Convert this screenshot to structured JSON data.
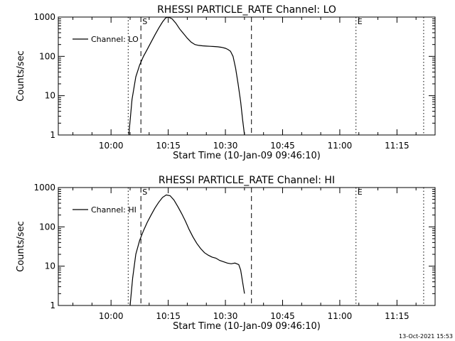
{
  "footer": {
    "timestamp": "13-Oct-2021 15:53"
  },
  "chart_data": [
    {
      "type": "line",
      "title": "RHESSI PARTICLE_RATE Channel: LO",
      "xlabel": "Start Time (10-Jan-09 09:46:10)",
      "ylabel": "Counts/sec",
      "y_scale": "log",
      "ylim": [
        1,
        1000
      ],
      "xlim": [
        "09:46:10",
        "11:25:00"
      ],
      "x_ticks": [
        "10:00",
        "10:15",
        "10:30",
        "10:45",
        "11:00",
        "11:15"
      ],
      "y_ticks": [
        "1",
        "10",
        "100",
        "1000"
      ],
      "legend": {
        "placement": "top-left",
        "entries": [
          "Channel: LO"
        ]
      },
      "markers": [
        {
          "label": "",
          "time": "10:04:30",
          "style": "dotted"
        },
        {
          "label": "S",
          "time": "10:07:50",
          "style": "dashed"
        },
        {
          "label": "",
          "time": "10:36:50",
          "style": "dashed"
        },
        {
          "label": "E",
          "time": "11:04:15",
          "style": "dotted"
        },
        {
          "label": "",
          "time": "11:22:00",
          "style": "dotted"
        }
      ],
      "series": [
        {
          "name": "Channel: LO",
          "x": [
            "10:04:40",
            "10:05:30",
            "10:06:30",
            "10:07:30",
            "10:08:30",
            "10:09:30",
            "10:10:30",
            "10:11:30",
            "10:12:30",
            "10:13:30",
            "10:14:20",
            "10:15:00",
            "10:16:00",
            "10:17:00",
            "10:18:00",
            "10:19:00",
            "10:20:00",
            "10:21:00",
            "10:22:00",
            "10:23:00",
            "10:24:00",
            "10:25:00",
            "10:26:00",
            "10:27:00",
            "10:28:00",
            "10:29:00",
            "10:30:00",
            "10:30:40",
            "10:31:20",
            "10:32:00",
            "10:32:40",
            "10:33:20",
            "10:34:00",
            "10:34:30",
            "10:35:00"
          ],
          "y": [
            1.0,
            8,
            30,
            60,
            100,
            150,
            230,
            350,
            520,
            750,
            950,
            1000,
            900,
            700,
            500,
            380,
            290,
            230,
            200,
            190,
            185,
            182,
            180,
            178,
            175,
            170,
            160,
            150,
            135,
            100,
            50,
            20,
            7,
            2.5,
            1.0
          ]
        }
      ]
    },
    {
      "type": "line",
      "title": "RHESSI PARTICLE_RATE Channel: HI",
      "xlabel": "Start Time (10-Jan-09 09:46:10)",
      "ylabel": "Counts/sec",
      "y_scale": "log",
      "ylim": [
        1,
        1000
      ],
      "xlim": [
        "09:46:10",
        "11:25:00"
      ],
      "x_ticks": [
        "10:00",
        "10:15",
        "10:30",
        "10:45",
        "11:00",
        "11:15"
      ],
      "y_ticks": [
        "1",
        "10",
        "100",
        "1000"
      ],
      "legend": {
        "placement": "top-left",
        "entries": [
          "Channel: HI"
        ]
      },
      "markers": [
        {
          "label": "",
          "time": "10:04:30",
          "style": "dotted"
        },
        {
          "label": "S",
          "time": "10:07:50",
          "style": "dashed"
        },
        {
          "label": "",
          "time": "10:36:50",
          "style": "dashed"
        },
        {
          "label": "E",
          "time": "11:04:15",
          "style": "dotted"
        },
        {
          "label": "",
          "time": "11:22:00",
          "style": "dotted"
        }
      ],
      "series": [
        {
          "name": "Channel: HI",
          "x": [
            "10:05:00",
            "10:05:40",
            "10:06:30",
            "10:07:30",
            "10:08:30",
            "10:09:30",
            "10:10:30",
            "10:11:30",
            "10:12:30",
            "10:13:30",
            "10:14:30",
            "10:15:30",
            "10:16:30",
            "10:17:30",
            "10:18:30",
            "10:19:30",
            "10:20:30",
            "10:21:30",
            "10:22:30",
            "10:23:30",
            "10:24:30",
            "10:25:30",
            "10:26:30",
            "10:27:30",
            "10:28:30",
            "10:29:30",
            "10:30:30",
            "10:31:30",
            "10:32:30",
            "10:33:30",
            "10:34:00",
            "10:34:30",
            "10:35:00"
          ],
          "y": [
            1.0,
            5,
            20,
            45,
            80,
            130,
            200,
            300,
            420,
            560,
            650,
            620,
            480,
            330,
            220,
            140,
            85,
            55,
            38,
            28,
            22,
            19,
            17,
            16,
            14,
            13,
            12,
            11.5,
            12,
            11,
            8,
            4,
            2.0
          ]
        }
      ]
    }
  ]
}
